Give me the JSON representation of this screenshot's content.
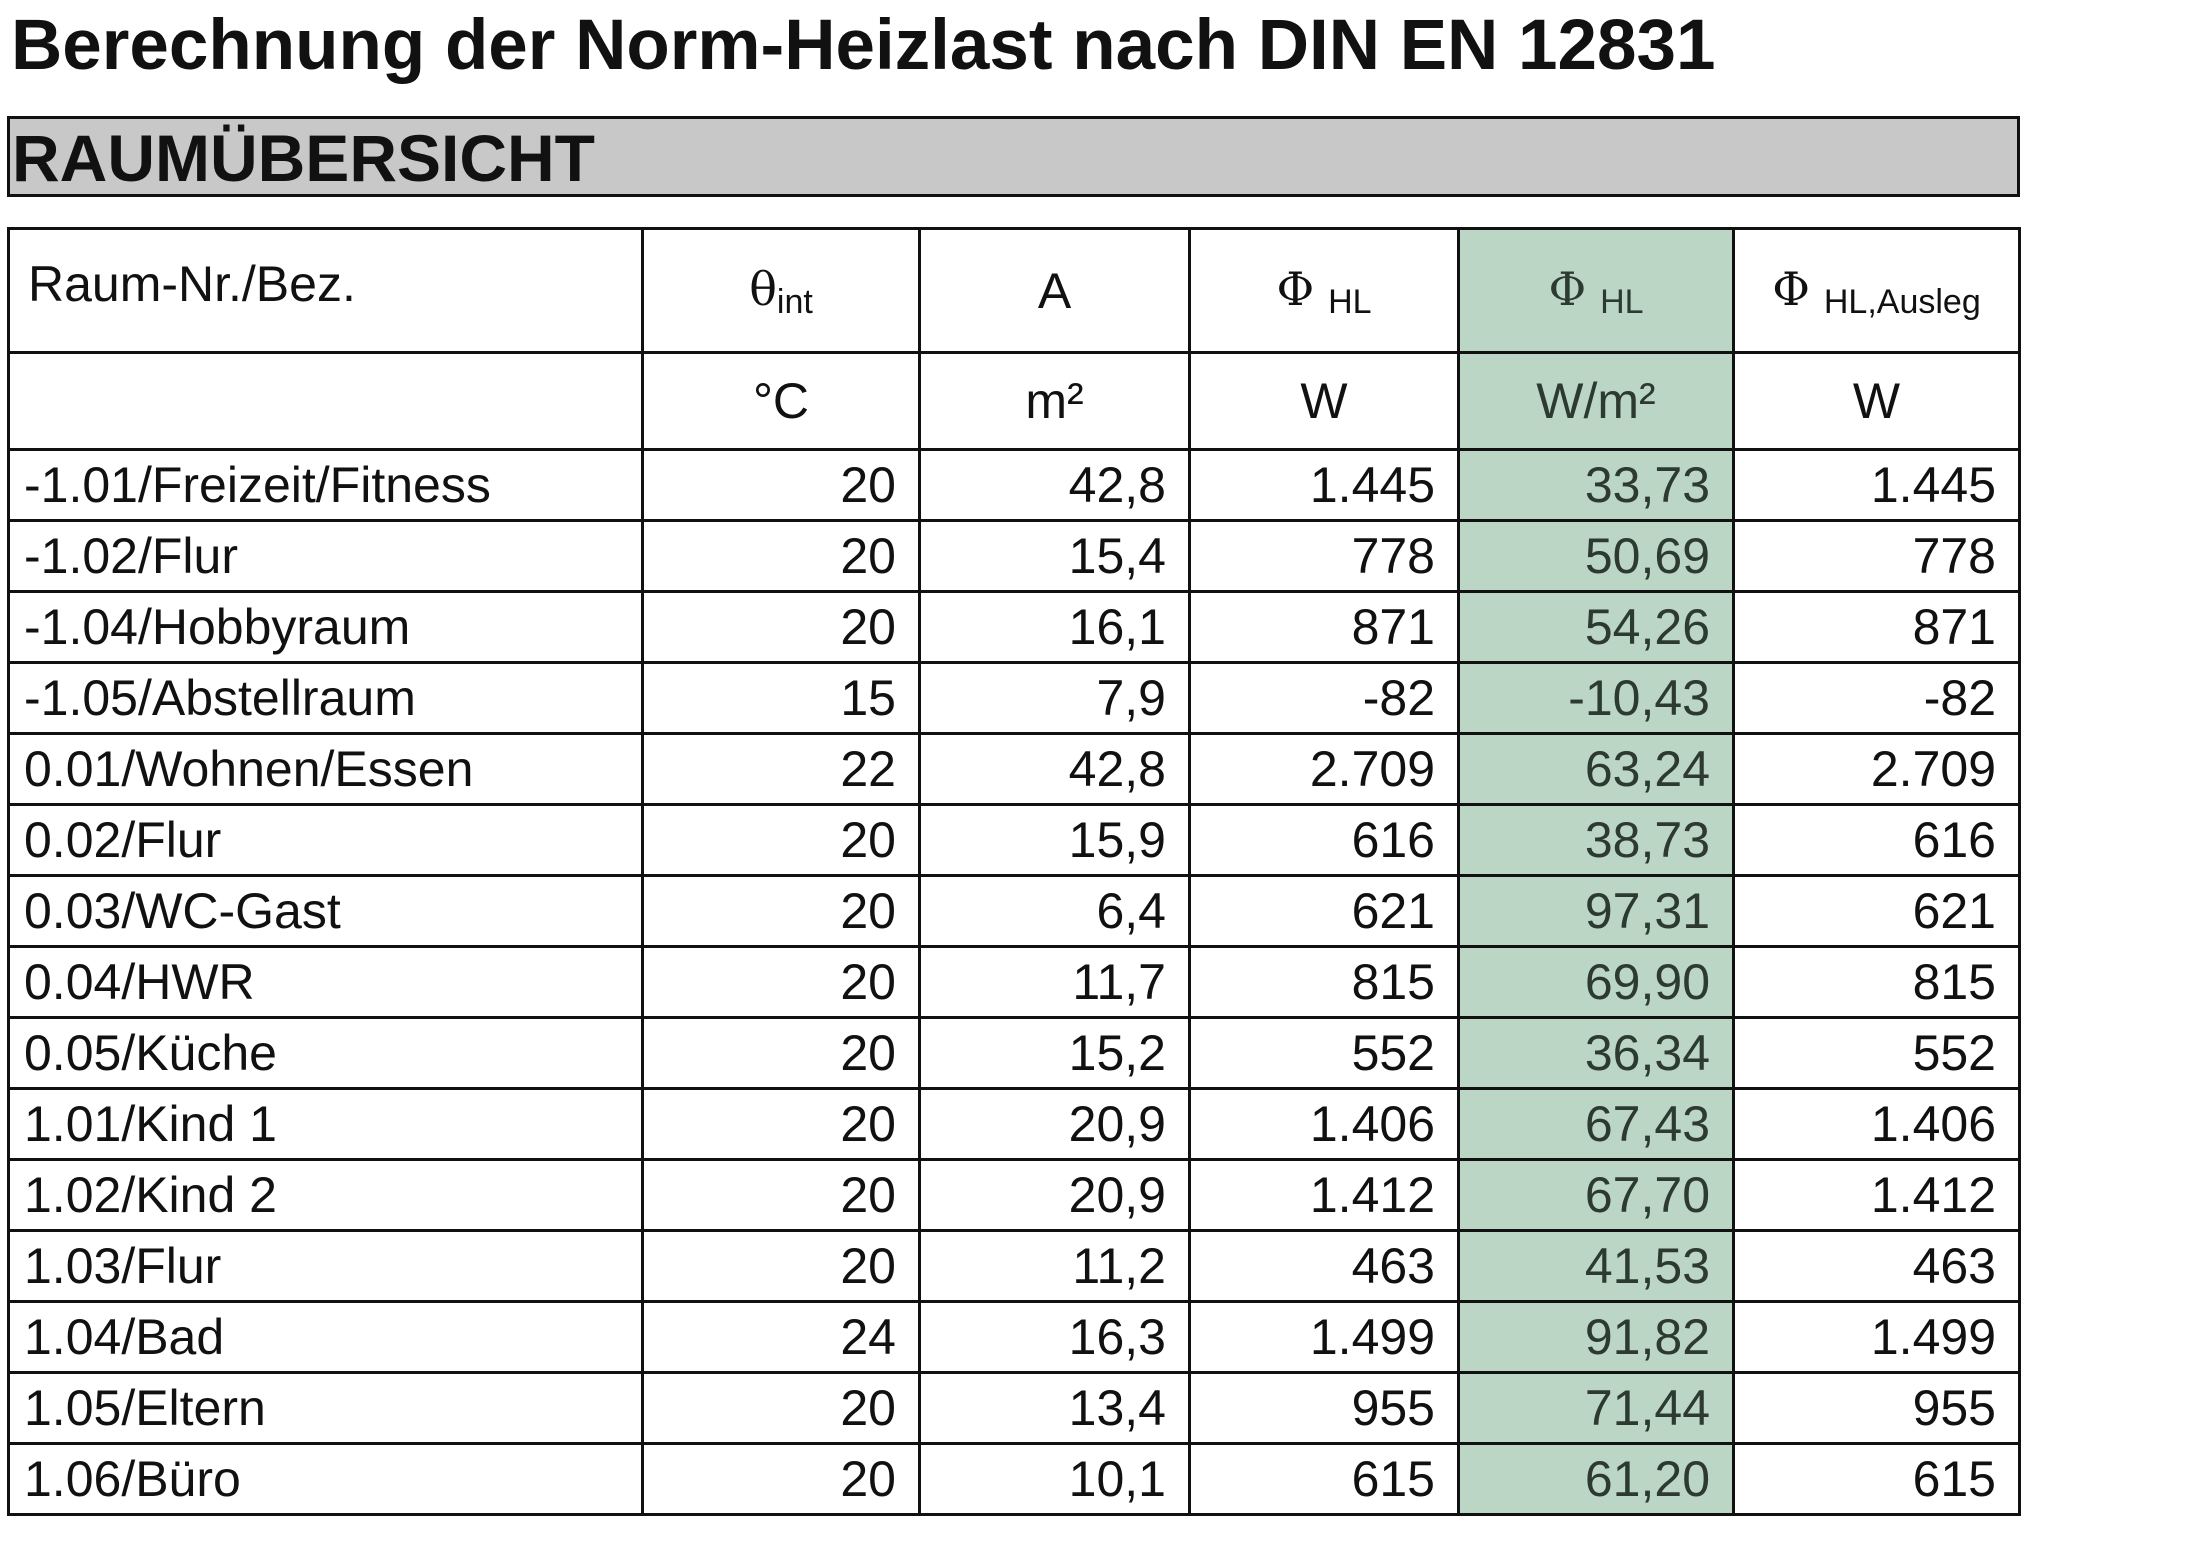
{
  "header": {
    "title": "Berechnung der Norm-Heizlast nach DIN EN 12831",
    "section": "RAUMÜBERSICHT"
  },
  "table": {
    "columns": [
      {
        "label": "Raum-Nr./Bez."
      },
      {
        "symbol": "θ",
        "sub": "int",
        "unit": "°C"
      },
      {
        "label": "A",
        "unit": "m²"
      },
      {
        "symbol": "Φ",
        "sub": "HL",
        "unit": "W"
      },
      {
        "symbol": "Φ",
        "sub": "HL",
        "unit": "W/m²"
      },
      {
        "symbol": "Φ",
        "sub": "HL,Ausleg",
        "unit": "W"
      }
    ],
    "rows": [
      [
        "-1.01/Freizeit/Fitness",
        "20",
        "42,8",
        "1.445",
        "33,73",
        "1.445"
      ],
      [
        "-1.02/Flur",
        "20",
        "15,4",
        "778",
        "50,69",
        "778"
      ],
      [
        "-1.04/Hobbyraum",
        "20",
        "16,1",
        "871",
        "54,26",
        "871"
      ],
      [
        "-1.05/Abstellraum",
        "15",
        "7,9",
        "-82",
        "-10,43",
        "-82"
      ],
      [
        "0.01/Wohnen/Essen",
        "22",
        "42,8",
        "2.709",
        "63,24",
        "2.709"
      ],
      [
        "0.02/Flur",
        "20",
        "15,9",
        "616",
        "38,73",
        "616"
      ],
      [
        "0.03/WC-Gast",
        "20",
        "6,4",
        "621",
        "97,31",
        "621"
      ],
      [
        "0.04/HWR",
        "20",
        "11,7",
        "815",
        "69,90",
        "815"
      ],
      [
        "0.05/Küche",
        "20",
        "15,2",
        "552",
        "36,34",
        "552"
      ],
      [
        "1.01/Kind 1",
        "20",
        "20,9",
        "1.406",
        "67,43",
        "1.406"
      ],
      [
        "1.02/Kind 2",
        "20",
        "20,9",
        "1.412",
        "67,70",
        "1.412"
      ],
      [
        "1.03/Flur",
        "20",
        "11,2",
        "463",
        "41,53",
        "463"
      ],
      [
        "1.04/Bad",
        "24",
        "16,3",
        "1.499",
        "91,82",
        "1.499"
      ],
      [
        "1.05/Eltern",
        "20",
        "13,4",
        "955",
        "71,44",
        "955"
      ],
      [
        "1.06/Büro",
        "20",
        "10,1",
        "615",
        "61,20",
        "615"
      ]
    ]
  }
}
